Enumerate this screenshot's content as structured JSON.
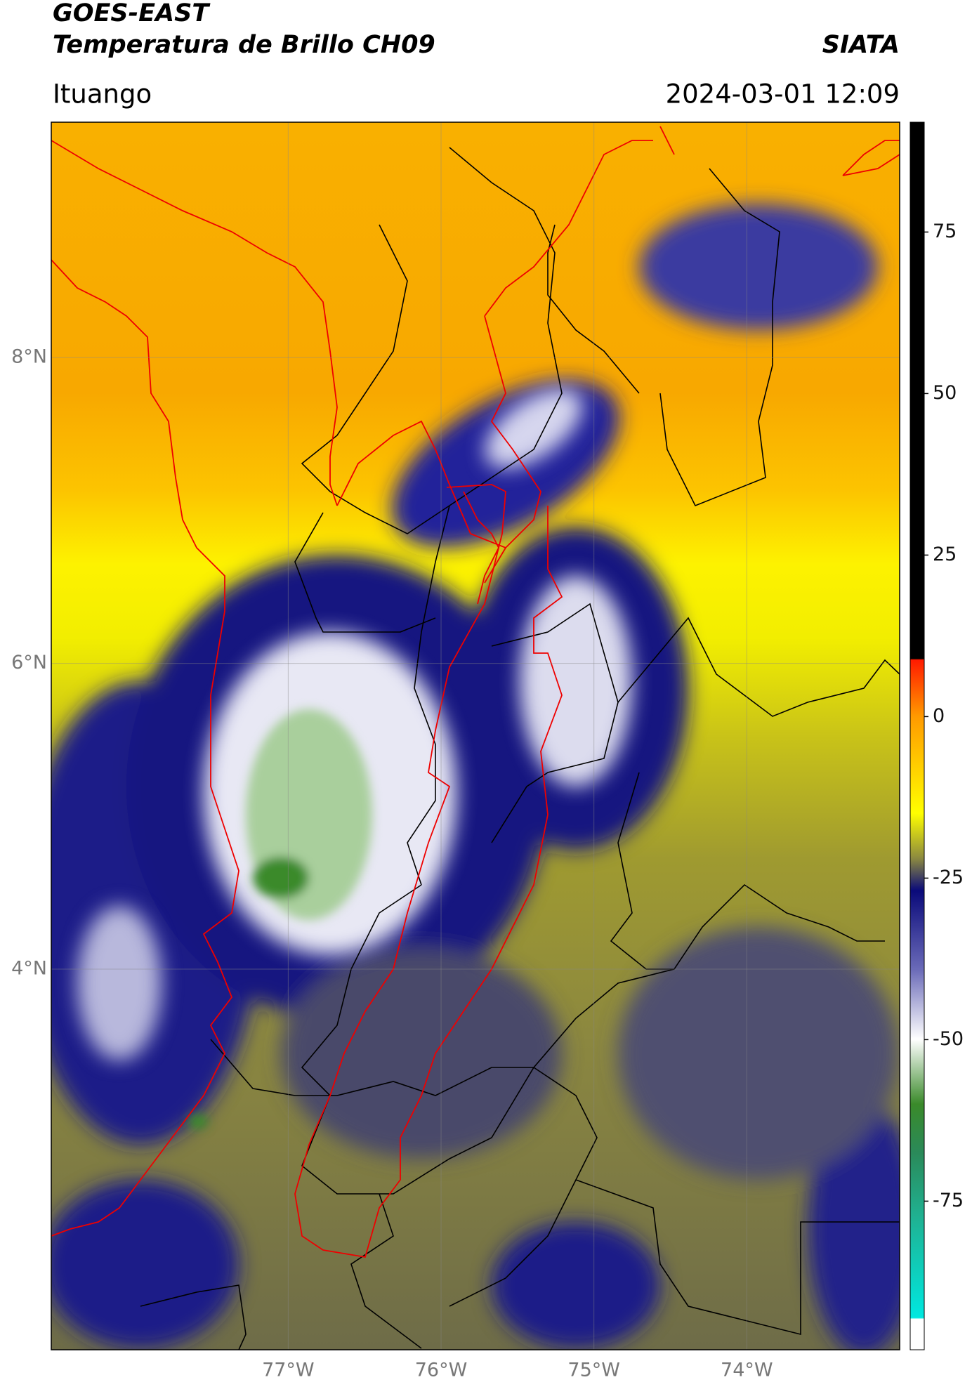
{
  "chart_data": {
    "type": "map",
    "title": "GOES-EAST",
    "subtitle": "Temperatura de Brillo CH09",
    "source": "SIATA",
    "location": "Ituango",
    "timestamp": "2024-03-01 12:09",
    "xlim": [
      -78.55,
      -73.0
    ],
    "xticks": [
      {
        "value": -77,
        "label": "77°W"
      },
      {
        "value": -76,
        "label": "76°W"
      },
      {
        "value": -75,
        "label": "75°W"
      },
      {
        "value": -74,
        "label": "74°W"
      }
    ],
    "ylim": [
      1.51,
      9.54
    ],
    "yticks": [
      {
        "value": 4,
        "label": "4°N"
      },
      {
        "value": 6,
        "label": "6°N"
      },
      {
        "value": 8,
        "label": "8°N"
      }
    ],
    "colorbar": {
      "lim": [
        -98,
        92
      ],
      "ticks": [
        -75,
        -50,
        -25,
        0,
        25,
        50,
        75
      ]
    },
    "grid": true
  }
}
